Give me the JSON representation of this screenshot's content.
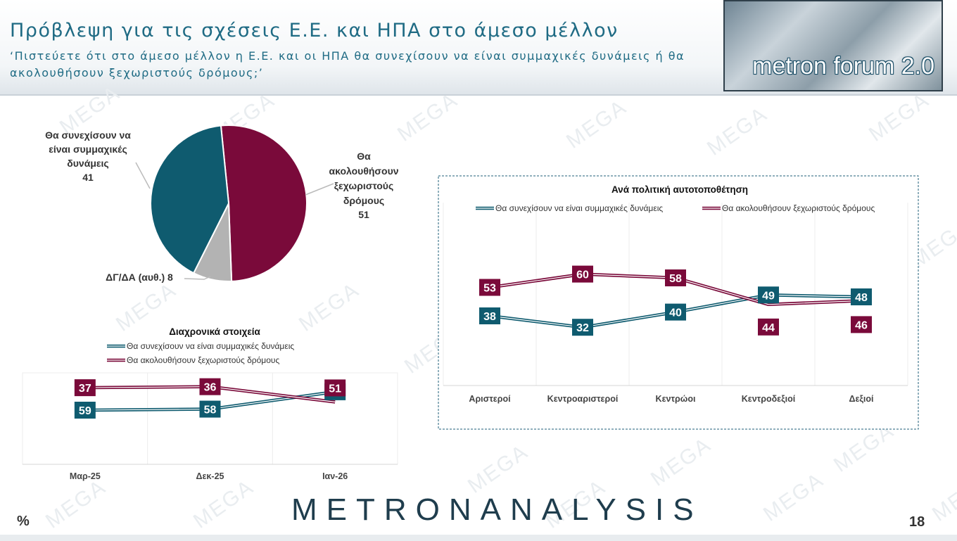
{
  "header": {
    "title": "Πρόβλεψη για τις σχέσεις Ε.Ε. και ΗΠΑ στο άμεσο μέλλον",
    "subtitle": "‘Πιστεύετε ότι στο άμεσο μέλλον η Ε.Ε. και οι ΗΠΑ θα συνεχίσουν να είναι συμμαχικές δυνάμεις ή θα ακολουθήσουν ξεχωριστούς δρόμους;’",
    "logo_text": "metron forum 2.0"
  },
  "watermark_text": "MEGA",
  "colors": {
    "teal": "#0f5b6f",
    "maroon": "#7a0a3a",
    "gray": "#b3b3b3",
    "title": "#1f6b84"
  },
  "footer": {
    "brand": "METRONANALYSIS",
    "unit": "%",
    "page": "18"
  },
  "chart_data": [
    {
      "type": "pie",
      "slices": [
        {
          "label": "Θα ακολουθήσουν ξεχωριστούς δρόμους",
          "value": 51,
          "color": "#7a0a3a"
        },
        {
          "label": "ΔΓ/ΔΑ (αυθ.)",
          "value": 8,
          "color": "#b3b3b3"
        },
        {
          "label": "Θα συνεχίσουν να είναι συμμαχικές δυνάμεις",
          "value": 41,
          "color": "#0f5b6f"
        }
      ],
      "annotations": {
        "continue_lines": [
          "Θα συνεχίσουν να",
          "είναι συμμαχικές",
          "δυνάμεις"
        ],
        "continue_value": "41",
        "separate_lines": [
          "Θα",
          "ακολουθήσουν",
          "ξεχωριστούς",
          "δρόμους"
        ],
        "separate_value": "51",
        "dk": "ΔΓ/ΔΑ (αυθ.) 8"
      }
    },
    {
      "type": "line",
      "title": "Διαχρονικά στοιχεία",
      "categories": [
        "Μαρ-25",
        "Δεκ-25",
        "Ιαν-26"
      ],
      "series": [
        {
          "name": "Θα συνεχίσουν να είναι συμμαχικές δυνάμεις",
          "values": [
            59,
            58,
            41
          ],
          "color": "#0f5b6f"
        },
        {
          "name": "Θα ακολουθήσουν ξεχωριστούς δρόμους",
          "values": [
            37,
            36,
            51
          ],
          "color": "#7a0a3a"
        }
      ],
      "ylim": [
        0,
        100
      ],
      "grid": "vertical",
      "legend": "top"
    },
    {
      "type": "line",
      "title": "Ανά πολιτική αυτοτοποθέτηση",
      "categories": [
        "Αριστεροί",
        "Κεντροαριστεροί",
        "Κεντρώοι",
        "Κεντροδεξιοί",
        "Δεξιοί"
      ],
      "series": [
        {
          "name": "Θα συνεχίσουν να είναι συμμαχικές δυνάμεις",
          "values": [
            38,
            32,
            40,
            49,
            48
          ],
          "color": "#0f5b6f"
        },
        {
          "name": "Θα ακολουθήσουν ξεχωριστούς δρόμους",
          "values": [
            53,
            60,
            58,
            44,
            46
          ],
          "color": "#7a0a3a"
        }
      ],
      "ylim": [
        0,
        100
      ],
      "grid": "vertical",
      "legend": "top"
    }
  ]
}
